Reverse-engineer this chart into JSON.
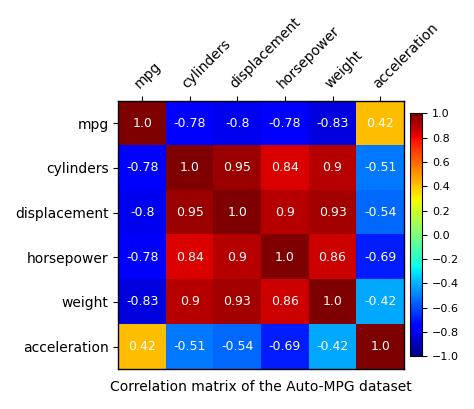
{
  "labels": [
    "mpg",
    "cylinders",
    "displacement",
    "horsepower",
    "weight",
    "acceleration"
  ],
  "matrix": [
    [
      1.0,
      -0.78,
      -0.8,
      -0.78,
      -0.83,
      0.42
    ],
    [
      -0.78,
      1.0,
      0.95,
      0.84,
      0.9,
      -0.51
    ],
    [
      -0.8,
      0.95,
      1.0,
      0.9,
      0.93,
      -0.54
    ],
    [
      -0.78,
      0.84,
      0.9,
      1.0,
      0.86,
      -0.69
    ],
    [
      -0.83,
      0.9,
      0.93,
      0.86,
      1.0,
      -0.42
    ],
    [
      0.42,
      -0.51,
      -0.54,
      -0.69,
      -0.42,
      1.0
    ]
  ],
  "cell_texts": [
    [
      "1.0",
      "-0.78",
      "-0.8",
      "-0.78",
      "-0.83",
      "0.42"
    ],
    [
      "-0.78",
      "1.0",
      "0.95",
      "0.84",
      "0.9",
      "-0.51"
    ],
    [
      "-0.8",
      "0.95",
      "1.0",
      "0.9",
      "0.93",
      "-0.54"
    ],
    [
      "-0.78",
      "0.84",
      "0.9",
      "1.0",
      "0.86",
      "-0.69"
    ],
    [
      "-0.83",
      "0.9",
      "0.93",
      "0.86",
      "1.0",
      "-0.42"
    ],
    [
      "0.42",
      "-0.51",
      "-0.54",
      "-0.69",
      "-0.42",
      "1.0"
    ]
  ],
  "title": "Correlation matrix of the Auto-MPG dataset",
  "cmap": "jet",
  "vmin": -1.0,
  "vmax": 1.0,
  "text_color": "white",
  "title_fontsize": 10,
  "label_fontsize": 10,
  "cell_fontsize": 9,
  "colorbar_ticks": [
    1.0,
    0.8,
    0.6,
    0.4,
    0.2,
    0.0,
    -0.2,
    -0.4,
    -0.6,
    -0.8,
    -1.0
  ]
}
